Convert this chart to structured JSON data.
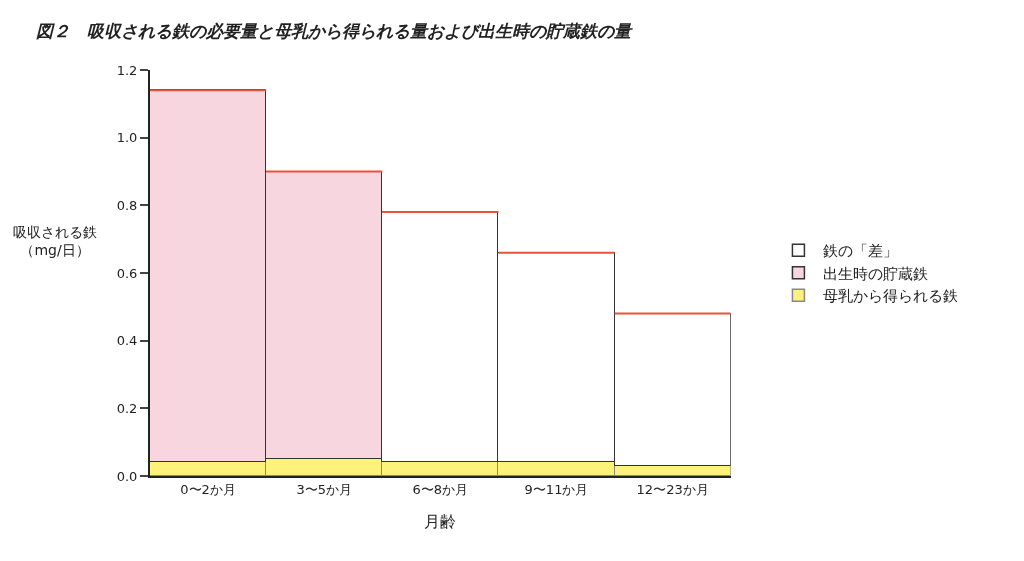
{
  "chart_data": {
    "type": "bar",
    "title": "図２　吸収される鉄の必要量と母乳から得られる量および出生時の貯蔵鉄の量",
    "xlabel": "月齢",
    "ylabel": "吸収される鉄（mg/日）",
    "categories": [
      "0〜2か月",
      "3〜5か月",
      "6〜8か月",
      "9〜11か月",
      "12〜23か月"
    ],
    "stacked": true,
    "series": [
      {
        "name": "母乳から得られる鉄",
        "color": "#fff27a",
        "values": [
          0.04,
          0.05,
          0.04,
          0.04,
          0.03
        ]
      },
      {
        "name": "出生時の貯蔵鉄",
        "color": "#f7d6e0",
        "values": [
          1.1,
          0.85,
          null,
          null,
          null
        ]
      },
      {
        "name": "鉄の「差」",
        "color": "#ffffff",
        "values": [
          null,
          null,
          0.74,
          0.62,
          0.45
        ]
      }
    ],
    "ylim": [
      0,
      1.2
    ],
    "yticks": [
      {
        "value": 0,
        "label": "0.0"
      },
      0.2,
      0.4,
      0.6,
      0.8,
      {
        "value": 1,
        "label": "1.0"
      },
      1.2
    ],
    "legend": "right"
  }
}
